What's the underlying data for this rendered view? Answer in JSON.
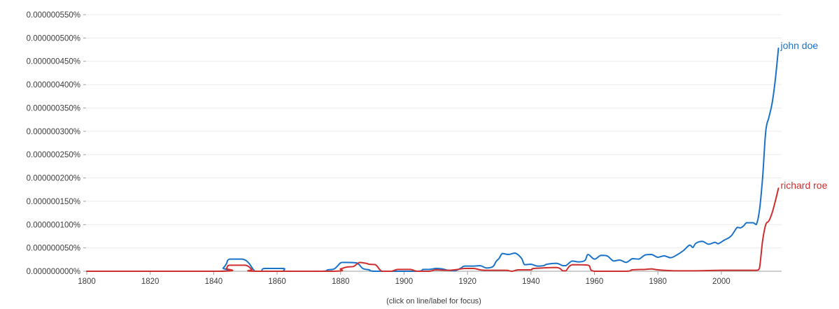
{
  "chart_data": {
    "type": "line",
    "title": "",
    "xlabel": "",
    "ylabel": "",
    "note": "(click on line/label for focus)",
    "xlim": [
      1800,
      2019
    ],
    "ylim": [
      0,
      5.5e-09
    ],
    "xticks": [
      1800,
      1820,
      1840,
      1860,
      1880,
      1900,
      1920,
      1940,
      1960,
      1980,
      2000
    ],
    "yticks": [
      0,
      5e-10,
      1e-09,
      1.5e-09,
      2e-09,
      2.5e-09,
      3e-09,
      3.5e-09,
      4e-09,
      4.5e-09,
      5e-09,
      5.5e-09
    ],
    "ytick_labels": [
      "0.000000000%",
      "0.000000050%",
      "0.000000100%",
      "0.000000150%",
      "0.000000200%",
      "0.000000250%",
      "0.000000300%",
      "0.000000350%",
      "0.000000400%",
      "0.000000450%",
      "0.000000500%",
      "0.000000550%"
    ],
    "grid": true,
    "legend": "inline-right",
    "series": [
      {
        "name": "john doe",
        "color": "#1a73c8",
        "points": [
          [
            1800,
            0
          ],
          [
            1841,
            0
          ],
          [
            1843,
            7e-11
          ],
          [
            1844,
            1.6e-10
          ],
          [
            1845,
            2.6e-10
          ],
          [
            1849,
            2.6e-10
          ],
          [
            1851,
            1.8e-10
          ],
          [
            1853,
            0
          ],
          [
            1855,
            0
          ],
          [
            1856,
            6e-11
          ],
          [
            1862,
            6e-11
          ],
          [
            1863,
            0
          ],
          [
            1874,
            0
          ],
          [
            1876,
            3e-11
          ],
          [
            1878,
            5e-11
          ],
          [
            1880,
            1.8e-10
          ],
          [
            1881,
            1.9e-10
          ],
          [
            1885,
            1.8e-10
          ],
          [
            1887,
            6e-11
          ],
          [
            1889,
            3e-11
          ],
          [
            1891,
            0
          ],
          [
            1904,
            0
          ],
          [
            1906,
            4e-11
          ],
          [
            1908,
            4e-11
          ],
          [
            1910,
            6e-11
          ],
          [
            1912,
            5e-11
          ],
          [
            1914,
            2e-11
          ],
          [
            1916,
            1e-11
          ],
          [
            1918,
            7e-11
          ],
          [
            1919,
            1.1e-10
          ],
          [
            1922,
            1.1e-10
          ],
          [
            1924,
            1.2e-10
          ],
          [
            1926,
            7e-11
          ],
          [
            1928,
            1e-10
          ],
          [
            1929,
            2.1e-10
          ],
          [
            1930,
            2.8e-10
          ],
          [
            1931,
            3.8e-10
          ],
          [
            1933,
            3.6e-10
          ],
          [
            1935,
            3.9e-10
          ],
          [
            1937,
            2.8e-10
          ],
          [
            1938,
            1.4e-10
          ],
          [
            1940,
            1.5e-10
          ],
          [
            1942,
            1.1e-10
          ],
          [
            1944,
            1.2e-10
          ],
          [
            1945,
            1.5e-10
          ],
          [
            1948,
            1.7e-10
          ],
          [
            1950,
            1.2e-10
          ],
          [
            1951,
            1.2e-10
          ],
          [
            1953,
            2.2e-10
          ],
          [
            1955,
            2e-10
          ],
          [
            1957,
            2.3e-10
          ],
          [
            1958,
            3.6e-10
          ],
          [
            1960,
            2.6e-10
          ],
          [
            1962,
            3.4e-10
          ],
          [
            1964,
            3.3e-10
          ],
          [
            1966,
            2.2e-10
          ],
          [
            1968,
            2.4e-10
          ],
          [
            1970,
            1.9e-10
          ],
          [
            1972,
            2.7e-10
          ],
          [
            1974,
            2.6e-10
          ],
          [
            1976,
            3.5e-10
          ],
          [
            1978,
            3.6e-10
          ],
          [
            1980,
            3e-10
          ],
          [
            1982,
            3.3e-10
          ],
          [
            1984,
            2.9e-10
          ],
          [
            1986,
            3.5e-10
          ],
          [
            1988,
            4.4e-10
          ],
          [
            1990,
            5.6e-10
          ],
          [
            1991,
            5.1e-10
          ],
          [
            1992,
            6e-10
          ],
          [
            1994,
            6.4e-10
          ],
          [
            1996,
            5.8e-10
          ],
          [
            1998,
            6.2e-10
          ],
          [
            1999,
            5.9e-10
          ],
          [
            2001,
            6.7e-10
          ],
          [
            2003,
            7.5e-10
          ],
          [
            2005,
            9.4e-10
          ],
          [
            2006,
            9.3e-10
          ],
          [
            2007,
            9.7e-10
          ],
          [
            2008,
            1.04e-09
          ],
          [
            2010,
            1.04e-09
          ],
          [
            2011,
            1e-09
          ],
          [
            2012,
            1.3e-09
          ],
          [
            2013,
            2e-09
          ],
          [
            2014,
            3e-09
          ],
          [
            2015,
            3.3e-09
          ],
          [
            2016,
            3.6e-09
          ],
          [
            2017,
            4.1e-09
          ],
          [
            2018,
            4.78e-09
          ]
        ]
      },
      {
        "name": "richard roe",
        "color": "#cf2e2e",
        "points": [
          [
            1800,
            0
          ],
          [
            1842,
            0
          ],
          [
            1844,
            6e-11
          ],
          [
            1845,
            1.3e-10
          ],
          [
            1850,
            1.3e-10
          ],
          [
            1852,
            4e-11
          ],
          [
            1853,
            0
          ],
          [
            1878,
            0
          ],
          [
            1880,
            5e-11
          ],
          [
            1882,
            9e-11
          ],
          [
            1884,
            1e-10
          ],
          [
            1886,
            1.9e-10
          ],
          [
            1888,
            1.7e-10
          ],
          [
            1889,
            1.5e-10
          ],
          [
            1891,
            1.4e-10
          ],
          [
            1893,
            0
          ],
          [
            1896,
            0
          ],
          [
            1898,
            4e-11
          ],
          [
            1902,
            4e-11
          ],
          [
            1904,
            0
          ],
          [
            1908,
            0
          ],
          [
            1910,
            3e-11
          ],
          [
            1914,
            2e-11
          ],
          [
            1917,
            4e-11
          ],
          [
            1919,
            6e-11
          ],
          [
            1922,
            6e-11
          ],
          [
            1924,
            3e-11
          ],
          [
            1926,
            2e-11
          ],
          [
            1932,
            2e-11
          ],
          [
            1934,
            0
          ],
          [
            1936,
            3e-11
          ],
          [
            1940,
            3e-11
          ],
          [
            1941,
            6e-11
          ],
          [
            1948,
            8e-11
          ],
          [
            1950,
            1e-11
          ],
          [
            1951,
            1e-11
          ],
          [
            1953,
            1.4e-10
          ],
          [
            1958,
            1.3e-10
          ],
          [
            1960,
            0
          ],
          [
            1970,
            0
          ],
          [
            1972,
            3e-11
          ],
          [
            1976,
            4e-11
          ],
          [
            1978,
            5e-11
          ],
          [
            1980,
            3e-11
          ],
          [
            1985,
            1e-11
          ],
          [
            1992,
            1e-11
          ],
          [
            2000,
            2e-11
          ],
          [
            2008,
            2e-11
          ],
          [
            2011,
            2e-11
          ],
          [
            2012,
            6e-11
          ],
          [
            2013,
            6.5e-10
          ],
          [
            2014,
            1e-09
          ],
          [
            2015,
            1.08e-09
          ],
          [
            2016,
            1.25e-09
          ],
          [
            2017,
            1.5e-09
          ],
          [
            2018,
            1.78e-09
          ]
        ]
      }
    ]
  }
}
